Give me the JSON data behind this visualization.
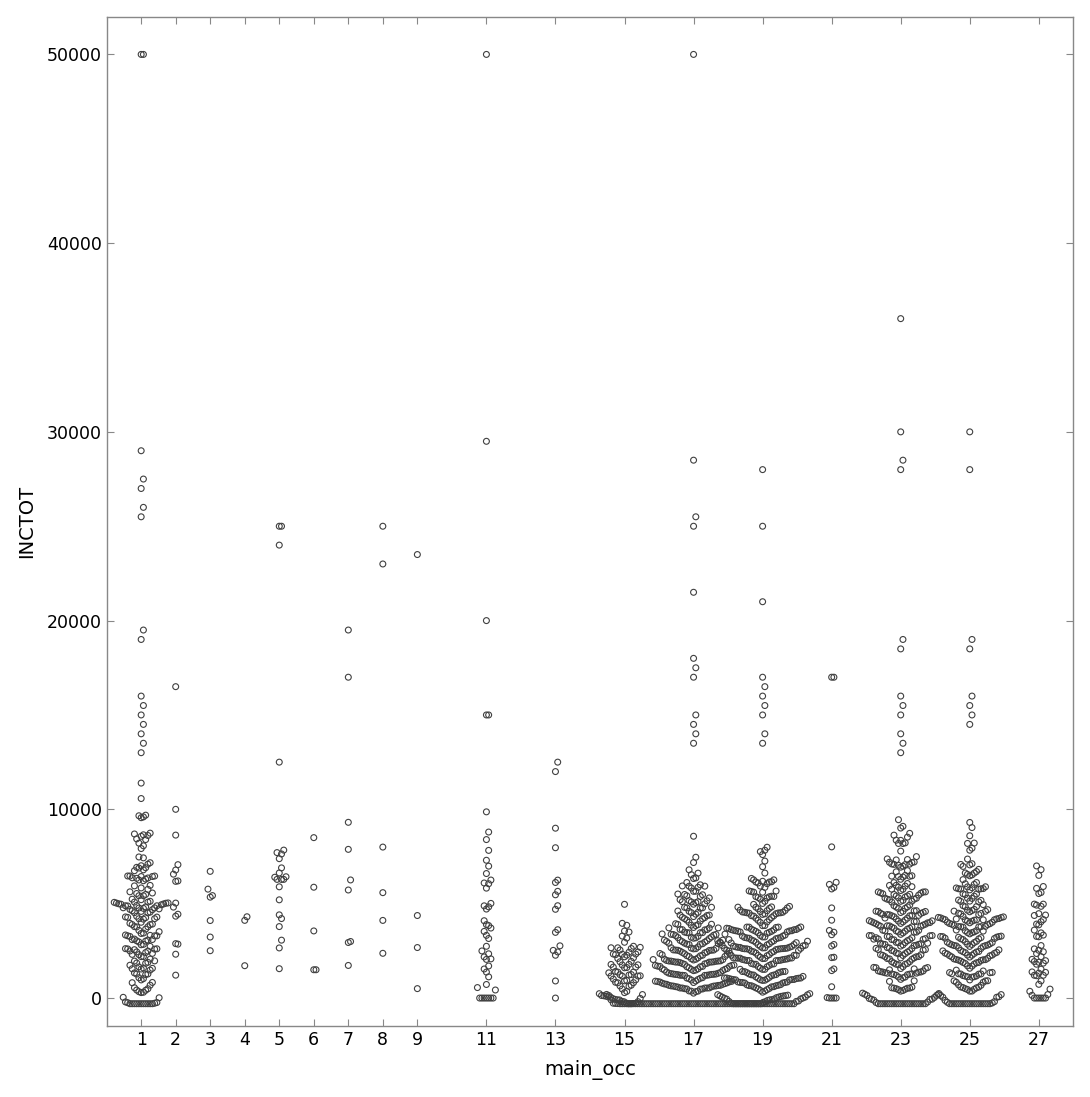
{
  "xlabel": "main_occ",
  "ylabel": "INCTOT",
  "xlim": [
    0.0,
    28.0
  ],
  "ylim": [
    -1500,
    52000
  ],
  "yticks": [
    0,
    10000,
    20000,
    30000,
    40000,
    50000
  ],
  "ytick_labels": [
    "0",
    "10000",
    "20000",
    "30000",
    "40000",
    "50000"
  ],
  "xticks": [
    1,
    2,
    3,
    4,
    5,
    6,
    7,
    8,
    9,
    11,
    13,
    15,
    17,
    19,
    21,
    23,
    25,
    27
  ],
  "background_color": "#ffffff",
  "marker_color": "none",
  "marker_edge_color": "#404040",
  "marker_size": 18,
  "marker_linewidth": 0.8,
  "bw_x": 0.065,
  "bw_y": 280,
  "random_seed": 42,
  "groups": {
    "1": {
      "n": 175,
      "mean": 4000,
      "std": 3000,
      "clip_min": -300,
      "clip_max": 20000,
      "outliers": [
        50000,
        50000,
        29000,
        27500,
        27000,
        26000,
        25500,
        19500,
        19000,
        16000,
        15500,
        15000,
        14500,
        14000,
        13500,
        13000
      ]
    },
    "2": {
      "n": 15,
      "mean": 5000,
      "std": 2500,
      "clip_min": 0,
      "clip_max": 10000,
      "outliers": [
        16500
      ]
    },
    "3": {
      "n": 7,
      "mean": 5000,
      "std": 2000,
      "clip_min": 1000,
      "clip_max": 9500,
      "outliers": []
    },
    "4": {
      "n": 3,
      "mean": 4000,
      "std": 2000,
      "clip_min": 1000,
      "clip_max": 8000,
      "outliers": []
    },
    "5": {
      "n": 20,
      "mean": 5000,
      "std": 2500,
      "clip_min": 500,
      "clip_max": 12500,
      "outliers": [
        25000,
        25000,
        24000
      ]
    },
    "6": {
      "n": 5,
      "mean": 4500,
      "std": 2000,
      "clip_min": 1500,
      "clip_max": 8500,
      "outliers": []
    },
    "7": {
      "n": 7,
      "mean": 5500,
      "std": 3500,
      "clip_min": 1000,
      "clip_max": 12000,
      "outliers": [
        19500,
        17000
      ]
    },
    "8": {
      "n": 4,
      "mean": 4000,
      "std": 2500,
      "clip_min": 500,
      "clip_max": 8000,
      "outliers": [
        25000,
        23000
      ]
    },
    "9": {
      "n": 3,
      "mean": 4000,
      "std": 2000,
      "clip_min": 500,
      "clip_max": 6000,
      "outliers": [
        23500
      ]
    },
    "11": {
      "n": 42,
      "mean": 3500,
      "std": 3000,
      "clip_min": 0,
      "clip_max": 14000,
      "outliers": [
        50000,
        29500,
        20000,
        15000,
        15000
      ]
    },
    "13": {
      "n": 16,
      "mean": 4000,
      "std": 2500,
      "clip_min": 0,
      "clip_max": 9000,
      "outliers": [
        12000,
        12500
      ]
    },
    "15": {
      "n": 75,
      "mean": 1200,
      "std": 1800,
      "clip_min": -300,
      "clip_max": 12000,
      "outliers": []
    },
    "17": {
      "n": 315,
      "mean": 1800,
      "std": 2200,
      "clip_min": -300,
      "clip_max": 10000,
      "outliers": [
        50000,
        28500,
        25500,
        25000,
        21500,
        18000,
        17500,
        17000,
        15000,
        14500,
        14000,
        13500
      ]
    },
    "19": {
      "n": 285,
      "mean": 2200,
      "std": 2200,
      "clip_min": -300,
      "clip_max": 10000,
      "outliers": [
        28000,
        25000,
        21000,
        17000,
        16500,
        16000,
        15500,
        15000,
        14000,
        13500
      ]
    },
    "21": {
      "n": 22,
      "mean": 3500,
      "std": 3000,
      "clip_min": 0,
      "clip_max": 12000,
      "outliers": [
        17000,
        17000
      ]
    },
    "23": {
      "n": 265,
      "mean": 3000,
      "std": 2500,
      "clip_min": -300,
      "clip_max": 10000,
      "outliers": [
        36000,
        30000,
        28500,
        28000,
        19000,
        18500,
        16000,
        15500,
        15000,
        14000,
        13500,
        13000
      ]
    },
    "25": {
      "n": 225,
      "mean": 2800,
      "std": 2500,
      "clip_min": -300,
      "clip_max": 10000,
      "outliers": [
        30000,
        28000,
        19000,
        18500,
        16000,
        15500,
        15000,
        14500
      ]
    },
    "27": {
      "n": 52,
      "mean": 2200,
      "std": 1800,
      "clip_min": 0,
      "clip_max": 7000,
      "outliers": [
        6500,
        7000
      ]
    }
  }
}
